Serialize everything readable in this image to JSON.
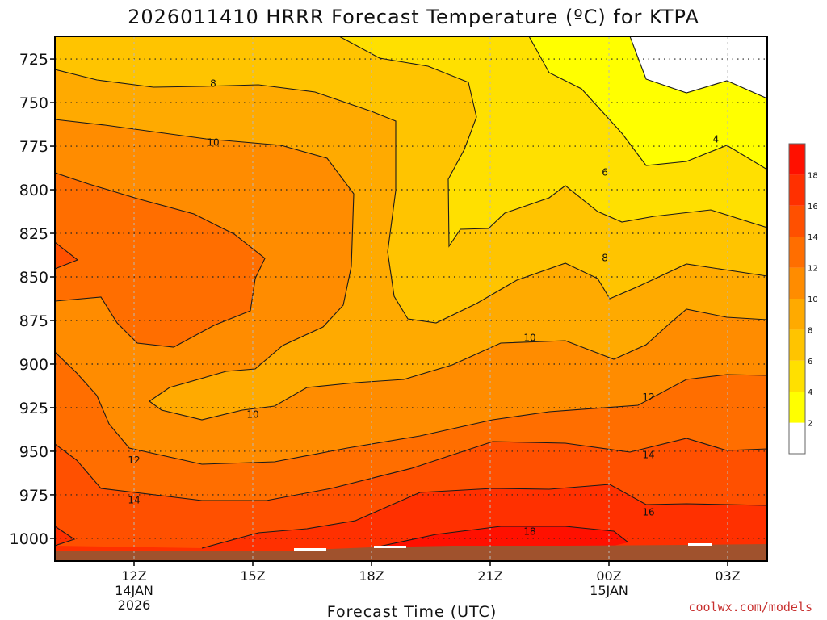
{
  "chart_data": {
    "type": "heatmap",
    "title": "2026011410 HRRR Forecast Temperature (ºC) for KTPA",
    "xlabel": "Forecast Time (UTC)",
    "ylabel": "",
    "y_ticks": [
      "725",
      "750",
      "775",
      "800",
      "825",
      "850",
      "875",
      "900",
      "925",
      "950",
      "975",
      "1000"
    ],
    "x_ticks": [
      {
        "label": "12Z",
        "sub1": "14JAN",
        "sub2": "2026"
      },
      {
        "label": "15Z",
        "sub1": "",
        "sub2": ""
      },
      {
        "label": "18Z",
        "sub1": "",
        "sub2": ""
      },
      {
        "label": "21Z",
        "sub1": "",
        "sub2": ""
      },
      {
        "label": "00Z",
        "sub1": "15JAN",
        "sub2": ""
      },
      {
        "label": "03Z",
        "sub1": "",
        "sub2": ""
      }
    ],
    "ylim": [
      1013,
      712
    ],
    "x_range_hours": [
      10,
      28
    ],
    "colorbar": {
      "levels": [
        "2",
        "4",
        "6",
        "8",
        "10",
        "12",
        "14",
        "16",
        "18"
      ],
      "colors": [
        "#ffffff",
        "#ffff00",
        "#ffe000",
        "#ffc400",
        "#ffaa00",
        "#ff8c00",
        "#ff6e00",
        "#ff5000",
        "#ff3000",
        "#ff1000"
      ]
    },
    "contour_labels": [
      {
        "value": "4",
        "hour": 26.7,
        "p": 771
      },
      {
        "value": "6",
        "hour": 23.9,
        "p": 790
      },
      {
        "value": "8",
        "hour": 14.0,
        "p": 739
      },
      {
        "value": "8",
        "hour": 23.9,
        "p": 839
      },
      {
        "value": "10",
        "hour": 14.0,
        "p": 773
      },
      {
        "value": "10",
        "hour": 22.0,
        "p": 885
      },
      {
        "value": "10",
        "hour": 15.0,
        "p": 929
      },
      {
        "value": "12",
        "hour": 12.0,
        "p": 955
      },
      {
        "value": "12",
        "hour": 25.0,
        "p": 919
      },
      {
        "value": "14",
        "hour": 12.0,
        "p": 978
      },
      {
        "value": "14",
        "hour": 25.0,
        "p": 952
      },
      {
        "value": "16",
        "hour": 25.0,
        "p": 985
      },
      {
        "value": "18",
        "hour": 22.0,
        "p": 996
      }
    ],
    "grid": true
  },
  "footer": {
    "credit": "coolwx.com/models"
  }
}
